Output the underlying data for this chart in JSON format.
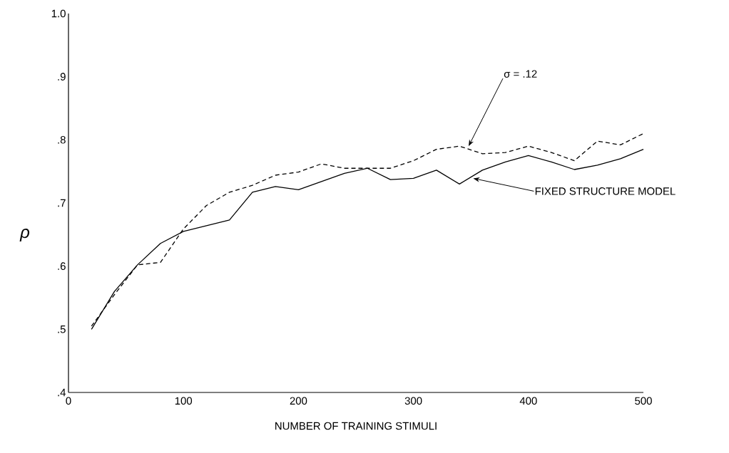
{
  "chart_data": {
    "type": "line",
    "xlabel": "NUMBER OF TRAINING STIMULI",
    "ylabel": "ρ",
    "x": [
      20,
      40,
      60,
      80,
      100,
      120,
      140,
      160,
      180,
      200,
      220,
      240,
      260,
      280,
      300,
      320,
      340,
      360,
      380,
      400,
      420,
      440,
      460,
      480,
      500
    ],
    "series": [
      {
        "color": "#000000",
        "line_style": "solid",
        "values": [
          0.5,
          0.56,
          0.602,
          0.636,
          0.655,
          0.664,
          0.673,
          0.717,
          0.726,
          0.721,
          0.734,
          0.747,
          0.755,
          0.737,
          0.739,
          0.752,
          0.73,
          0.752,
          0.765,
          0.775,
          0.765,
          0.753,
          0.76,
          0.77,
          0.785
        ]
      },
      {
        "color": "#000000",
        "line_style": "dashed",
        "values": [
          0.505,
          0.555,
          0.602,
          0.606,
          0.659,
          0.696,
          0.717,
          0.728,
          0.744,
          0.749,
          0.762,
          0.755,
          0.755,
          0.755,
          0.767,
          0.785,
          0.79,
          0.778,
          0.78,
          0.79,
          0.78,
          0.767,
          0.798,
          0.792,
          0.81
        ]
      }
    ],
    "xlim": [
      0,
      500
    ],
    "ylim": [
      0.4,
      1.0
    ],
    "xticks": [
      0,
      100,
      200,
      300,
      400,
      500
    ],
    "yticks": [
      {
        "value": 0.4,
        "label": ".4"
      },
      {
        "value": 0.5,
        "label": ".5"
      },
      {
        "value": 0.6,
        "label": ".6"
      },
      {
        "value": 0.7,
        "label": ".7"
      },
      {
        "value": 0.8,
        "label": ".8"
      },
      {
        "value": 0.9,
        "label": ".9"
      },
      {
        "value": 1.0,
        "label": "1.0"
      }
    ],
    "annotations": [
      {
        "text": "σ = .12",
        "x": 348,
        "y": 0.79
      },
      {
        "text": "FIXED STRUCTURE MODEL",
        "x": 352,
        "y": 0.739
      }
    ]
  }
}
